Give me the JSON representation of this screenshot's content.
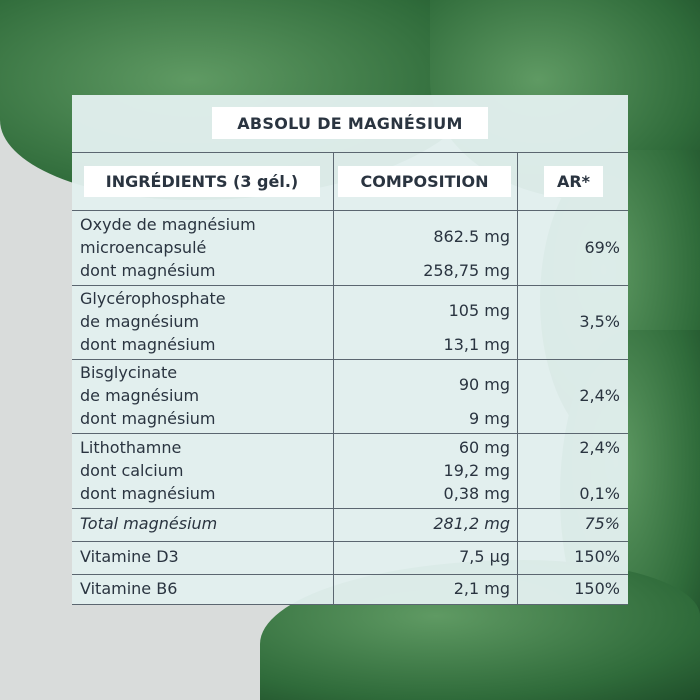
{
  "title": "ABSOLU DE MAGNÉSIUM",
  "headers": {
    "ingredients": "INGRÉDIENTS (3 gél.)",
    "composition": "COMPOSITION",
    "ar": "AR*"
  },
  "rows": [
    {
      "lines": [
        "Oxyde de magnésium",
        "microencapsulé",
        "dont magnésium"
      ],
      "comp": [
        "862.5 mg",
        "258,75 mg"
      ],
      "ar": [
        "69%"
      ]
    },
    {
      "lines": [
        "Glycérophosphate",
        "de magnésium",
        "dont magnésium"
      ],
      "comp": [
        "105 mg",
        "13,1 mg"
      ],
      "ar": [
        "3,5%"
      ]
    },
    {
      "lines": [
        "Bisglycinate",
        "de magnésium",
        "dont magnésium"
      ],
      "comp": [
        "90 mg",
        "9 mg"
      ],
      "ar": [
        "2,4%"
      ]
    },
    {
      "lines": [
        "Lithothamne",
        "dont calcium",
        "dont magnésium"
      ],
      "comp": [
        "60 mg",
        "19,2 mg",
        "0,38 mg"
      ],
      "ar": [
        "2,4%",
        "0,1%"
      ]
    },
    {
      "lines": [
        "Total magnésium"
      ],
      "comp": [
        "281,2 mg"
      ],
      "ar": [
        "75%"
      ]
    },
    {
      "lines": [
        "Vitamine D3"
      ],
      "comp": [
        "7,5 µg"
      ],
      "ar": [
        "150%"
      ]
    },
    {
      "lines": [
        "Vitamine B6"
      ],
      "comp": [
        "2,1 mg"
      ],
      "ar": [
        "150%"
      ]
    }
  ],
  "colors": {
    "panel": "#e2efee",
    "text": "#2a3440",
    "leaf": "#2f6b3a"
  }
}
